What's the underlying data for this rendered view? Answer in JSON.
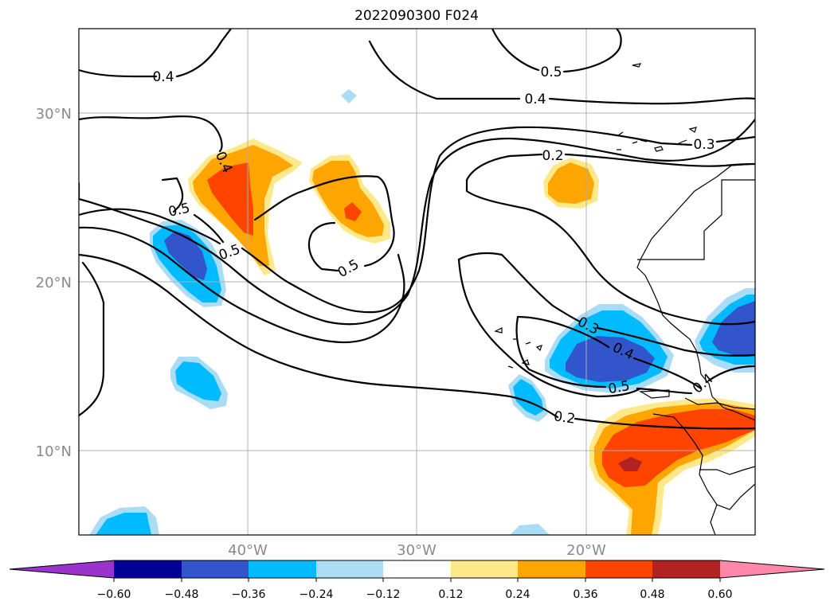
{
  "title": "2022090300 F024",
  "lat_labels": [
    "30°N",
    "20°N",
    "10°N"
  ],
  "lon_labels": [
    "40°W",
    "30°W",
    "20°W"
  ],
  "colorbar": {
    "ticks": [
      "−0.60",
      "−0.48",
      "−0.36",
      "−0.24",
      "−0.12",
      "0.12",
      "0.24",
      "0.36",
      "0.48",
      "0.60"
    ],
    "colors": [
      "#9933cc",
      "#000099",
      "#3355cc",
      "#00bbff",
      "#aaddf5",
      "#ffffff",
      "#ffe88a",
      "#ffa500",
      "#ff4400",
      "#b22222",
      "#ff88aa"
    ]
  },
  "fill_colors": {
    "pos_light": "#ffe88a",
    "pos_orange": "#ffa500",
    "pos_red": "#ff4400",
    "pos_dark": "#b22222",
    "neg_light": "#aaddf5",
    "neg_cyan": "#00bbff",
    "neg_blue": "#3355cc"
  },
  "contour_labels": [
    "0.4",
    "0.5",
    "0.4",
    "0.2",
    "0.3",
    "0.4",
    "0.5",
    "0.5",
    "0.5",
    "0.3",
    "0.4",
    "0.5",
    "0.4",
    "0.2"
  ]
}
